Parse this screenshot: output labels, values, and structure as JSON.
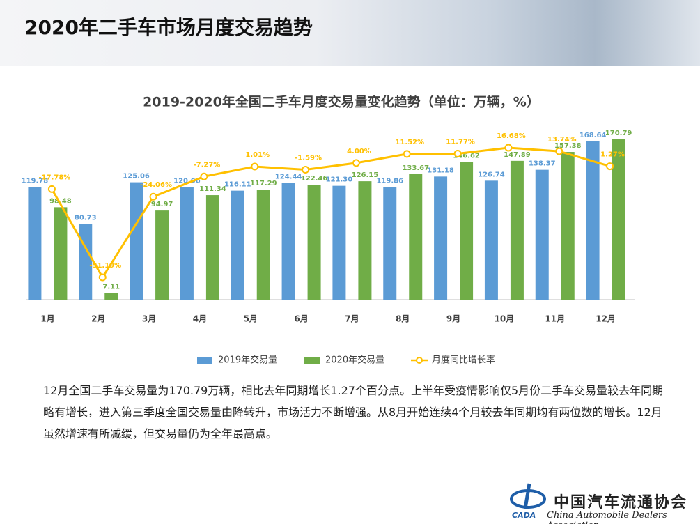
{
  "header": {
    "title": "2020年二手车市场月度交易趋势"
  },
  "chart_data": {
    "type": "bar",
    "title": "2019-2020年全国二手车月度交易量变化趋势（单位：万辆，%）",
    "categories": [
      "1月",
      "2月",
      "3月",
      "4月",
      "5月",
      "6月",
      "7月",
      "8月",
      "9月",
      "10月",
      "11月",
      "12月"
    ],
    "series": [
      {
        "name": "2019年交易量",
        "type": "bar",
        "color": "#5b9bd5",
        "values": [
          119.78,
          80.73,
          125.06,
          120.06,
          116.11,
          124.44,
          121.3,
          119.86,
          131.18,
          126.74,
          138.37,
          168.64
        ],
        "value_labels": [
          "119.78",
          "80.73",
          "125.06",
          "120.06",
          "116.11",
          "124.44",
          "121.30",
          "119.86",
          "131.18",
          "126.74",
          "138.37",
          "168.64"
        ]
      },
      {
        "name": "2020年交易量",
        "type": "bar",
        "color": "#70ad47",
        "values": [
          98.48,
          7.11,
          94.97,
          111.34,
          117.29,
          122.46,
          126.15,
          133.67,
          146.62,
          147.89,
          157.38,
          170.79
        ],
        "value_labels": [
          "98.48",
          "7.11",
          "94.97",
          "111.34",
          "117.29",
          "122.46",
          "126.15",
          "133.67",
          "146.62",
          "147.89",
          "157.38",
          "170.79"
        ]
      },
      {
        "name": "月度同比增长率",
        "type": "line",
        "color": "#ffc000",
        "values": [
          -17.78,
          -91.19,
          -24.06,
          -7.27,
          1.01,
          -1.59,
          4.0,
          11.52,
          11.77,
          16.68,
          13.74,
          1.27
        ],
        "value_labels": [
          "-17.78%",
          "-91.19%",
          "-24.06%",
          "-7.27%",
          "1.01%",
          "-1.59%",
          "4.00%",
          "11.52%",
          "11.77%",
          "16.68%",
          "13.74%",
          "1.27%"
        ]
      }
    ]
  },
  "paragraph": "12月全国二手车交易量为170.79万辆，相比去年同期增长1.27个百分点。上半年受疫情影响仅5月份二手车交易量较去年同期略有增长，进入第三季度全国交易量由降转升，市场活力不断增强。从8月开始连续4个月较去年同期均有两位数的增长。12月虽然增速有所减缓，但交易量仍为全年最高点。",
  "logo": {
    "mark": "CADA",
    "name_cn": "中国汽车流通协会",
    "name_en": "China Automobile Dealers Association"
  }
}
